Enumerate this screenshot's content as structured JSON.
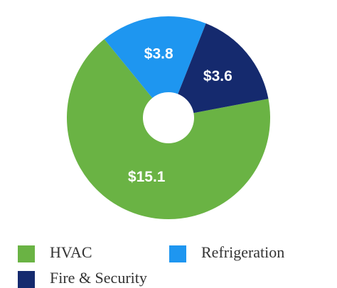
{
  "chart_data": {
    "type": "donut",
    "categories": [
      "HVAC",
      "Refrigeration",
      "Fire & Security"
    ],
    "values": [
      15.1,
      3.8,
      3.6
    ],
    "value_labels": [
      "$15.1",
      "$3.8",
      "$3.6"
    ],
    "colors": [
      "#6ab344",
      "#1e96f0",
      "#152a6e"
    ],
    "legend": "bottom"
  }
}
